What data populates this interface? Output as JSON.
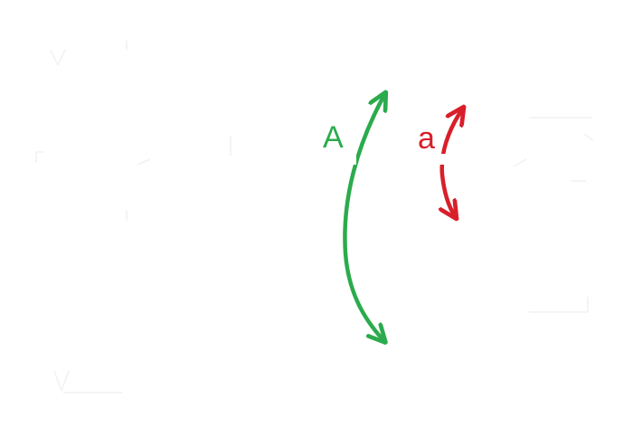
{
  "labels": {
    "large_arc": "A",
    "small_arc": "a"
  },
  "colors": {
    "large_arc": "#2bab4c",
    "small_arc": "#d81f2a",
    "background": "#ffffff"
  }
}
